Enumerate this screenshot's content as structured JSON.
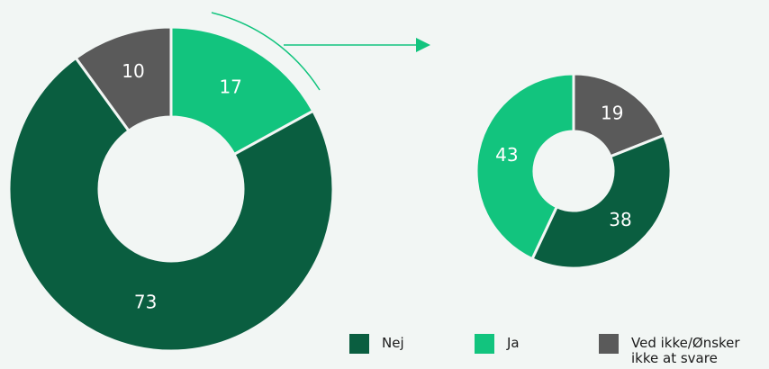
{
  "chart_data": [
    {
      "type": "pie",
      "values": [
        73,
        17,
        10
      ]
    },
    {
      "type": "pie",
      "values": [
        38,
        43,
        19
      ]
    }
  ],
  "legend": [
    {
      "name": "Nej",
      "color": "#0a5e40"
    },
    {
      "name": "Ja",
      "color": "#12c47e"
    },
    {
      "name": "Ved ikke/Ønsker ikke at svare",
      "color": "#5a5a5a"
    }
  ]
}
